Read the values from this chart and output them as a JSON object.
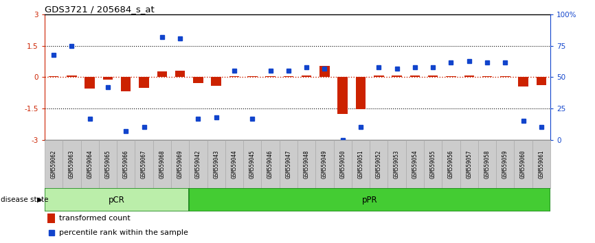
{
  "title": "GDS3721 / 205684_s_at",
  "samples": [
    "GSM559062",
    "GSM559063",
    "GSM559064",
    "GSM559065",
    "GSM559066",
    "GSM559067",
    "GSM559068",
    "GSM559069",
    "GSM559042",
    "GSM559043",
    "GSM559044",
    "GSM559045",
    "GSM559046",
    "GSM559047",
    "GSM559048",
    "GSM559049",
    "GSM559050",
    "GSM559051",
    "GSM559052",
    "GSM559053",
    "GSM559054",
    "GSM559055",
    "GSM559056",
    "GSM559057",
    "GSM559058",
    "GSM559059",
    "GSM559060",
    "GSM559061"
  ],
  "transformed_count": [
    0.05,
    0.08,
    -0.55,
    -0.12,
    -0.68,
    -0.52,
    0.28,
    0.32,
    -0.28,
    -0.42,
    0.05,
    0.05,
    0.05,
    0.05,
    0.08,
    0.55,
    -1.75,
    -1.52,
    0.08,
    0.07,
    0.07,
    0.07,
    0.05,
    0.07,
    0.05,
    0.05,
    -0.45,
    -0.38
  ],
  "percentile_rank_pct": [
    68,
    75,
    17,
    42,
    7,
    10,
    82,
    81,
    17,
    18,
    55,
    17,
    55,
    55,
    58,
    57,
    0,
    10,
    58,
    57,
    58,
    58,
    62,
    63,
    62,
    62,
    15,
    10
  ],
  "pCR_count": 8,
  "pPR_count": 20,
  "ylim_left": [
    -3,
    3
  ],
  "bar_color": "#cc2200",
  "dot_color": "#1144cc",
  "pCR_facecolor": "#bbeeaa",
  "pPR_facecolor": "#44cc33",
  "group_border_color": "#228822",
  "legend_bar_label": "transformed count",
  "legend_dot_label": "percentile rank within the sample",
  "group_label": "disease state",
  "tick_label_bg": "#cccccc",
  "tick_label_edge": "#aaaaaa"
}
